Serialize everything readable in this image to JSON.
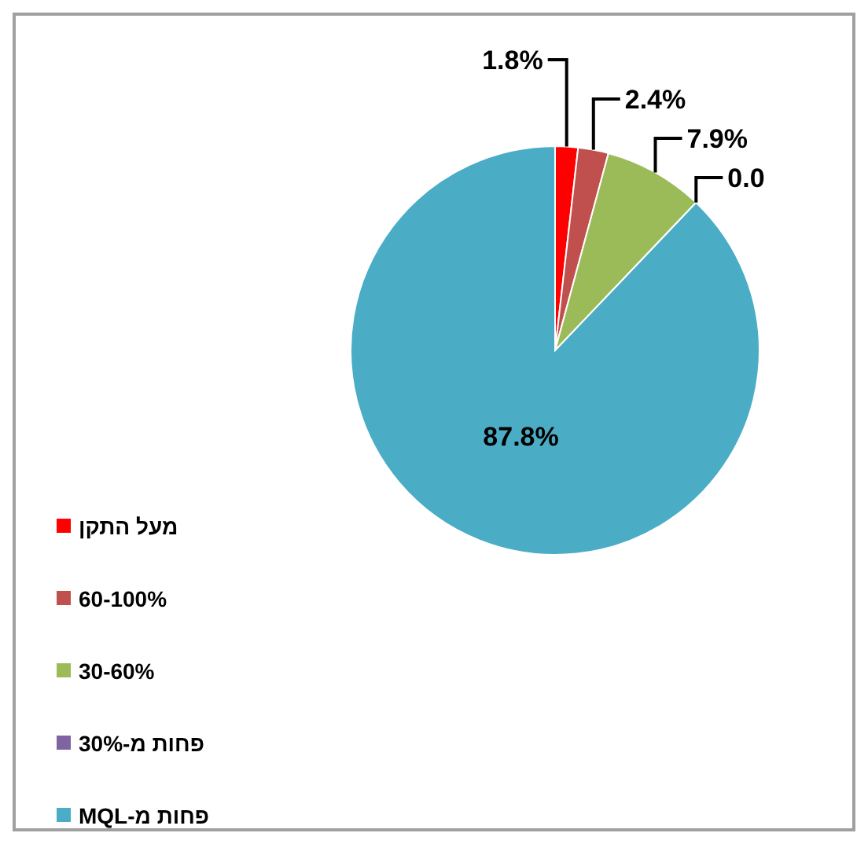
{
  "chart_data": {
    "type": "pie",
    "categories": [
      "מעל התקן",
      "60-100%",
      "30-60%",
      "פחות מ-30%",
      "פחות מ-MQL"
    ],
    "values": [
      1.8,
      2.4,
      7.9,
      0.0,
      87.8
    ],
    "value_labels": [
      "1.8%",
      "2.4%",
      "7.9%",
      "0.0",
      "87.8%"
    ],
    "colors": [
      "#ff0000",
      "#c0504d",
      "#9bbb59",
      "#8064a2",
      "#4bacc6"
    ],
    "legend": "left"
  }
}
